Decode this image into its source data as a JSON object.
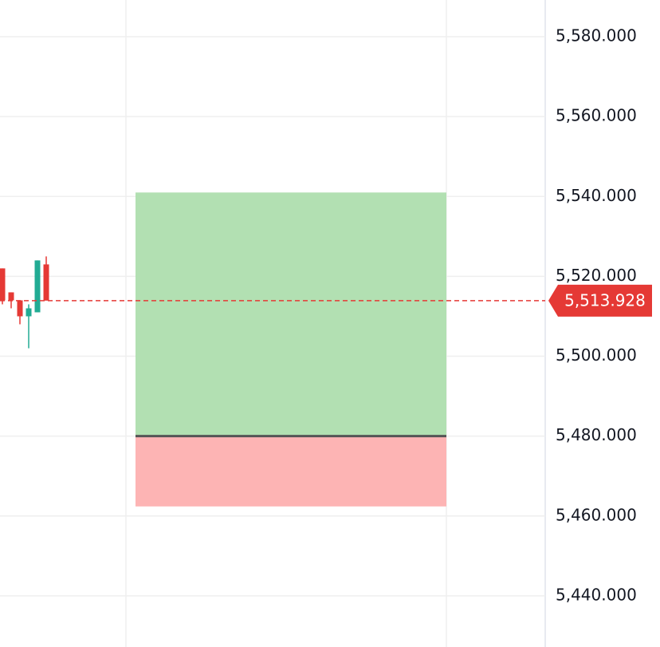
{
  "chart_data": {
    "type": "candlestick",
    "open": [
      5522,
      5516,
      5514,
      5510,
      5511,
      5523
    ],
    "high": [
      5522,
      5516,
      5514,
      5513,
      5524,
      5525
    ],
    "low": [
      5513,
      5512,
      5508,
      5502,
      5511,
      5514
    ],
    "close": [
      5514,
      5514,
      5510,
      5512,
      5524,
      5513.928
    ],
    "up_color": "#22ab94",
    "down_color": "#e53935",
    "ylim": [
      5427.2,
      5589.2
    ],
    "yticks": [
      {
        "value": 5440,
        "label": "5,440.000"
      },
      {
        "value": 5460,
        "label": "5,460.000"
      },
      {
        "value": 5480,
        "label": "5,480.000"
      },
      {
        "value": 5500,
        "label": "5,500.000"
      },
      {
        "value": 5520,
        "label": "5,520.000"
      },
      {
        "value": 5540,
        "label": "5,540.000"
      },
      {
        "value": 5560,
        "label": "5,560.000"
      },
      {
        "value": 5580,
        "label": "5,580.000"
      }
    ],
    "grid": true,
    "last_price": {
      "value": 5513.928,
      "label": "5,513.928"
    },
    "last_price_color": "#e53935",
    "position": {
      "target": 5541,
      "entry": 5480,
      "stop": 5462.4,
      "target_color": "#b2e0b2",
      "stop_color": "#fdb4b4"
    }
  }
}
